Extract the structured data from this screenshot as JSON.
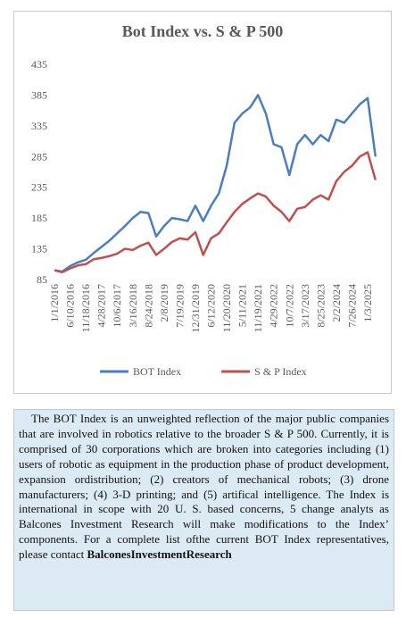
{
  "chart_data": {
    "type": "line",
    "title": "Bot Index vs. S & P 500",
    "categories": [
      "1/1/2016",
      null,
      "6/10/2016",
      null,
      "11/18/2016",
      null,
      "4/28/2017",
      null,
      "10/6/2017",
      null,
      "3/16/2018",
      null,
      "8/24/2018",
      null,
      "2/8/2019",
      null,
      "7/19/2019",
      null,
      "12/31/2019",
      null,
      "6/12/2020",
      null,
      "11/20/2020",
      null,
      "5/11/2021",
      null,
      "11/19/2021",
      null,
      "4/29/2022",
      null,
      "10/7/2022",
      null,
      "3/17/2023",
      null,
      "8/25/2023",
      null,
      "2/2/2024",
      null,
      "7/26/2024",
      null,
      "1/3/2025",
      null
    ],
    "series": [
      {
        "name": "BOT Index",
        "color": "#4a7ebf",
        "values": [
          100,
          98,
          107,
          113,
          117,
          128,
          138,
          148,
          160,
          172,
          185,
          195,
          193,
          155,
          172,
          185,
          183,
          180,
          205,
          180,
          205,
          225,
          270,
          340,
          355,
          365,
          385,
          355,
          305,
          300,
          255,
          305,
          320,
          305,
          320,
          310,
          345,
          340,
          355,
          370,
          380,
          285
        ]
      },
      {
        "name": "S & P Index",
        "color": "#c0504d",
        "values": [
          100,
          97,
          103,
          108,
          110,
          118,
          120,
          123,
          127,
          135,
          133,
          140,
          145,
          125,
          135,
          146,
          152,
          150,
          162,
          125,
          152,
          160,
          178,
          195,
          208,
          217,
          225,
          220,
          205,
          195,
          180,
          200,
          203,
          215,
          222,
          215,
          245,
          260,
          270,
          285,
          292,
          247
        ]
      }
    ],
    "ylim": [
      85,
      435
    ],
    "yticks": [
      85,
      135,
      185,
      235,
      285,
      335,
      385,
      435
    ],
    "grid": false,
    "legend": "bottom"
  },
  "description": {
    "text": "The BOT Index is an unweighted reflection of the major public companies that are involved in robotics relative to the broader S & P 500. Currently, it is comprised of 30 corporations which are broken into categories including (1) users of robotic as equipment in the production phase of product development, expansion ordistribution; (2) creators of mechanical robots; (3) drone manufacturers; (4) 3-D printing; and (5) artifical intelligence. The Index is international in scope with 20 U. S. based concerns, 5 change analyts as Balcones Investment Research will make modifications to the Index’ components. For a  complete list ofthe current BOT Index representatives, please contact",
    "contact": "BalconesInvestmentResearch"
  }
}
